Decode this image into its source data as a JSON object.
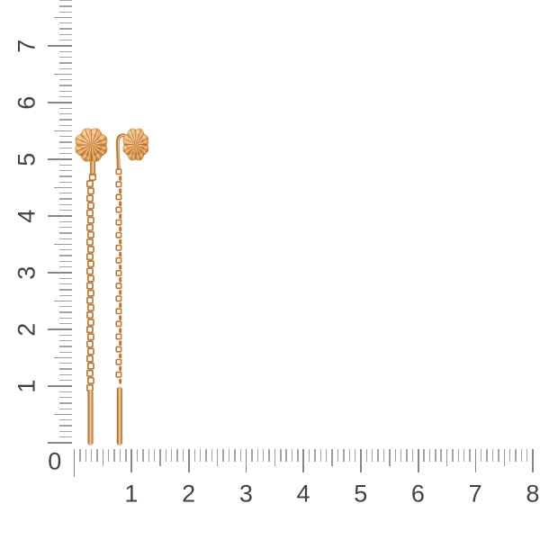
{
  "scene": {
    "description": "Pair of rose-gold threader earrings with diamond-cut flower tops, cable chains and bar drops, photographed on white with centimeter rulers",
    "background": "#ffffff"
  },
  "rulers": {
    "unit": "cm",
    "origin_label": "0",
    "vertical_labels": [
      "1",
      "2",
      "3",
      "4",
      "5",
      "6",
      "7"
    ],
    "horizontal_labels": [
      "1",
      "2",
      "3",
      "4",
      "5",
      "6",
      "7",
      "8"
    ],
    "tick_minor_color": "#a4a4a4",
    "tick_mid_color": "#9a9a9a",
    "tick_major_color": "#878787",
    "label_color": "#424242"
  },
  "earrings": {
    "count": 2,
    "gold_light": "#f9e2b8",
    "gold_highlight": "#f3d09c",
    "gold_mid": "#dd9c5e",
    "gold_deep": "#c07434",
    "gold_dark": "#a65c20",
    "ray_light": "#f1cd9a",
    "ray_dark": "#b66627",
    "link_stroke": "#bf7733",
    "link_fill": "#d69655"
  }
}
